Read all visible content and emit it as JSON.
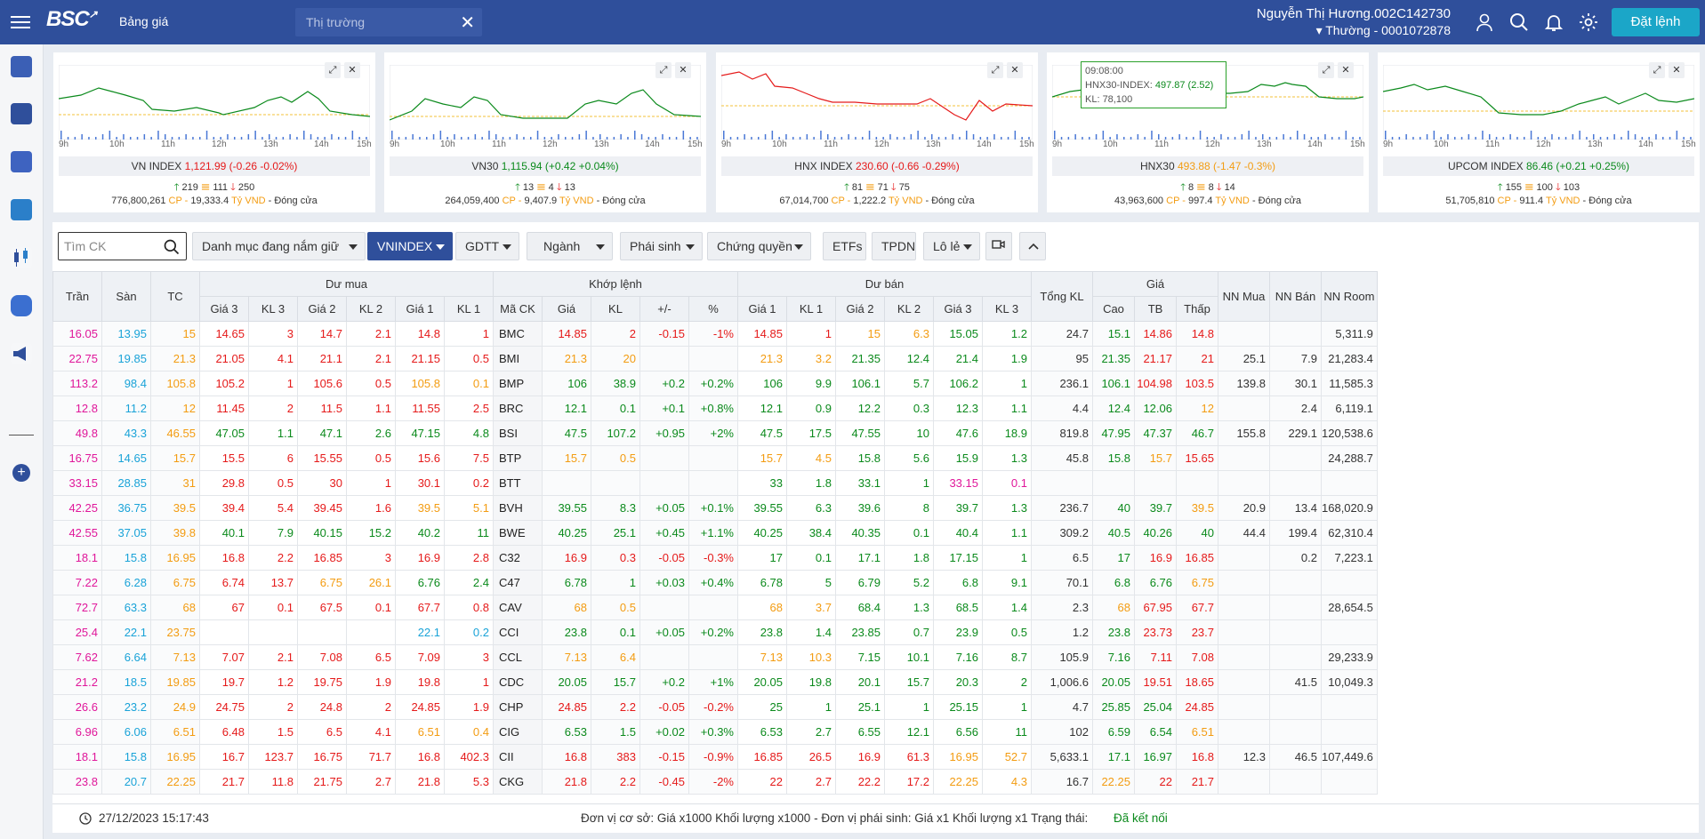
{
  "topbar": {
    "logo": "BSC",
    "price_board_tab": "Bảng giá",
    "market_tab_placeholder": "Thị trường",
    "user_name": "Nguyễn Thị Hương.002C142730",
    "account_line": "Thường - 0001072878",
    "order_button": "Đặt lệnh"
  },
  "chart_times": [
    "9h",
    "10h",
    "11h",
    "12h",
    "13h",
    "14h",
    "15h"
  ],
  "index_cards": [
    {
      "name": "VN INDEX",
      "value": "1,121.99",
      "change": "(-0.26 -0.02%)",
      "color": "#e51a1a",
      "up": "219",
      "flat": "111",
      "down": "250",
      "volume": "776,800,261",
      "vol_unit": "CP - ",
      "turnover": "19,333.4",
      "turnover_unit": "Tỷ VND",
      "status": "- Đóng cửa"
    },
    {
      "name": "VN30",
      "value": "1,115.94",
      "change": "(+0.42 +0.04%)",
      "color": "#0b8a1c",
      "up": "13",
      "flat": "4",
      "down": "13",
      "volume": "264,059,400",
      "vol_unit": "CP - ",
      "turnover": "9,407.9",
      "turnover_unit": "Tỷ VND",
      "status": "- Đóng cửa"
    },
    {
      "name": "HNX INDEX",
      "value": "230.60",
      "change": "(-0.66 -0.29%)",
      "color": "#e51a1a",
      "up": "81",
      "flat": "71",
      "down": "75",
      "volume": "67,014,700",
      "vol_unit": "CP - ",
      "turnover": "1,222.2",
      "turnover_unit": "Tỷ VND",
      "status": "- Đóng cửa"
    },
    {
      "name": "HNX30",
      "value": "493.88",
      "change": "(-1.47 -0.3%)",
      "color": "#f39c12",
      "up": "8",
      "flat": "8",
      "down": "14",
      "volume": "43,963,600",
      "vol_unit": "CP - ",
      "turnover": "997.4",
      "turnover_unit": "Tỷ VND",
      "status": "- Đóng cửa"
    },
    {
      "name": "UPCOM INDEX",
      "value": "86.46",
      "change": "(+0.21 +0.25%)",
      "color": "#0b8a1c",
      "up": "155",
      "flat": "100",
      "down": "103",
      "volume": "51,705,810",
      "vol_unit": "CP - ",
      "turnover": "911.4",
      "turnover_unit": "Tỷ VND",
      "status": "- Đóng cửa"
    }
  ],
  "tooltip": {
    "time": "09:08:00",
    "label": "HNX30-INDEX: ",
    "value": "497.87 (2.52)",
    "kl": "KL: 78,100"
  },
  "filters": {
    "search_placeholder": "Tìm CK",
    "portfolio": "Danh mục đang nắm giữ",
    "vnindex": "VNINDEX",
    "gdtt": "GDTT",
    "nganh": "Ngành",
    "phai_sinh": "Phái sinh",
    "chung_quyen": "Chứng quyền",
    "etfs": "ETFs",
    "tpdn": "TPDN",
    "lo_le": "Lô lẻ"
  },
  "table": {
    "groups": {
      "ceil": "Trần",
      "floor": "Sàn",
      "ref": "TC",
      "bid": "Dư mua",
      "match": "Khớp lệnh",
      "ask": "Dư bán",
      "total": "Tổng KL",
      "price": "Giá",
      "nn_buy": "NN Mua",
      "nn_sell": "NN Bán",
      "nn_room": "NN Room"
    },
    "sub": {
      "bid": [
        "Giá 3",
        "KL 3",
        "Giá 2",
        "KL 2",
        "Giá 1",
        "KL 1"
      ],
      "match": [
        "Mã CK",
        "Giá",
        "KL",
        "+/-",
        "%"
      ],
      "ask": [
        "Giá 1",
        "KL 1",
        "Giá 2",
        "KL 2",
        "Giá 3",
        "KL 3"
      ],
      "price": [
        "Cao",
        "TB",
        "Thấp"
      ]
    },
    "rows": [
      [
        "16.05",
        "13.95",
        "15",
        "14.65",
        "3",
        "14.7",
        "2.1",
        "14.8",
        "1",
        "BMC",
        "14.85",
        "2",
        "-0.15",
        "-1%",
        "14.85",
        "1",
        "15",
        "6.3",
        "15.05",
        "1.2",
        "24.7",
        "15.1",
        "14.86",
        "14.8",
        "",
        "",
        "5,311.9"
      ],
      [
        "22.75",
        "19.85",
        "21.3",
        "21.05",
        "4.1",
        "21.1",
        "2.1",
        "21.15",
        "0.5",
        "BMI",
        "21.3",
        "20",
        "",
        "",
        "21.3",
        "3.2",
        "21.35",
        "12.4",
        "21.4",
        "1.9",
        "95",
        "21.35",
        "21.17",
        "21",
        "25.1",
        "7.9",
        "21,283.4"
      ],
      [
        "113.2",
        "98.4",
        "105.8",
        "105.2",
        "1",
        "105.6",
        "0.5",
        "105.8",
        "0.1",
        "BMP",
        "106",
        "38.9",
        "+0.2",
        "+0.2%",
        "106",
        "9.9",
        "106.1",
        "5.7",
        "106.2",
        "1",
        "236.1",
        "106.1",
        "104.98",
        "103.5",
        "139.8",
        "30.1",
        "11,585.3"
      ],
      [
        "12.8",
        "11.2",
        "12",
        "11.45",
        "2",
        "11.5",
        "1.1",
        "11.55",
        "2.5",
        "BRC",
        "12.1",
        "0.1",
        "+0.1",
        "+0.8%",
        "12.1",
        "0.9",
        "12.2",
        "0.3",
        "12.3",
        "1.1",
        "4.4",
        "12.4",
        "12.06",
        "12",
        "",
        "2.4",
        "6,119.1"
      ],
      [
        "49.8",
        "43.3",
        "46.55",
        "47.05",
        "1.1",
        "47.1",
        "2.6",
        "47.15",
        "4.8",
        "BSI",
        "47.5",
        "107.2",
        "+0.95",
        "+2%",
        "47.5",
        "17.5",
        "47.55",
        "10",
        "47.6",
        "18.9",
        "819.8",
        "47.95",
        "47.37",
        "46.7",
        "155.8",
        "229.1",
        "120,538.6"
      ],
      [
        "16.75",
        "14.65",
        "15.7",
        "15.5",
        "6",
        "15.55",
        "0.5",
        "15.6",
        "7.5",
        "BTP",
        "15.7",
        "0.5",
        "",
        "",
        "15.7",
        "4.5",
        "15.8",
        "5.6",
        "15.9",
        "1.3",
        "45.8",
        "15.8",
        "15.7",
        "15.65",
        "",
        "",
        "24,288.7"
      ],
      [
        "33.15",
        "28.85",
        "31",
        "29.8",
        "0.5",
        "30",
        "1",
        "30.1",
        "0.2",
        "BTT",
        "",
        "",
        "",
        "",
        "33",
        "1.8",
        "33.1",
        "1",
        "33.15",
        "0.1",
        "",
        "",
        "",
        "",
        "",
        "",
        ""
      ],
      [
        "42.25",
        "36.75",
        "39.5",
        "39.4",
        "5.4",
        "39.45",
        "1.6",
        "39.5",
        "5.1",
        "BVH",
        "39.55",
        "8.3",
        "+0.05",
        "+0.1%",
        "39.55",
        "6.3",
        "39.6",
        "8",
        "39.7",
        "1.3",
        "236.7",
        "40",
        "39.7",
        "39.5",
        "20.9",
        "13.4",
        "168,020.9"
      ],
      [
        "42.55",
        "37.05",
        "39.8",
        "40.1",
        "7.9",
        "40.15",
        "15.2",
        "40.2",
        "11",
        "BWE",
        "40.25",
        "25.1",
        "+0.45",
        "+1.1%",
        "40.25",
        "38.4",
        "40.35",
        "0.1",
        "40.4",
        "1.1",
        "309.2",
        "40.5",
        "40.26",
        "40",
        "44.4",
        "199.4",
        "62,310.4"
      ],
      [
        "18.1",
        "15.8",
        "16.95",
        "16.8",
        "2.2",
        "16.85",
        "3",
        "16.9",
        "2.8",
        "C32",
        "16.9",
        "0.3",
        "-0.05",
        "-0.3%",
        "17",
        "0.1",
        "17.1",
        "1.8",
        "17.15",
        "1",
        "6.5",
        "17",
        "16.9",
        "16.85",
        "",
        "0.2",
        "7,223.1"
      ],
      [
        "7.22",
        "6.28",
        "6.75",
        "6.74",
        "13.7",
        "6.75",
        "26.1",
        "6.76",
        "2.4",
        "C47",
        "6.78",
        "1",
        "+0.03",
        "+0.4%",
        "6.78",
        "5",
        "6.79",
        "5.2",
        "6.8",
        "9.1",
        "70.1",
        "6.8",
        "6.76",
        "6.75",
        "",
        "",
        ""
      ],
      [
        "72.7",
        "63.3",
        "68",
        "67",
        "0.1",
        "67.5",
        "0.1",
        "67.7",
        "0.8",
        "CAV",
        "68",
        "0.5",
        "",
        "",
        "68",
        "3.7",
        "68.4",
        "1.3",
        "68.5",
        "1.4",
        "2.3",
        "68",
        "67.95",
        "67.7",
        "",
        "",
        "28,654.5"
      ],
      [
        "25.4",
        "22.1",
        "23.75",
        "",
        "",
        "",
        "",
        "22.1",
        "0.2",
        "CCI",
        "23.8",
        "0.1",
        "+0.05",
        "+0.2%",
        "23.8",
        "1.4",
        "23.85",
        "0.7",
        "23.9",
        "0.5",
        "1.2",
        "23.8",
        "23.73",
        "23.7",
        "",
        "",
        ""
      ],
      [
        "7.62",
        "6.64",
        "7.13",
        "7.07",
        "2.1",
        "7.08",
        "6.5",
        "7.09",
        "3",
        "CCL",
        "7.13",
        "6.4",
        "",
        "",
        "7.13",
        "10.3",
        "7.15",
        "10.1",
        "7.16",
        "8.7",
        "105.9",
        "7.16",
        "7.11",
        "7.08",
        "",
        "",
        "29,233.9"
      ],
      [
        "21.2",
        "18.5",
        "19.85",
        "19.7",
        "1.2",
        "19.75",
        "1.9",
        "19.8",
        "1",
        "CDC",
        "20.05",
        "15.7",
        "+0.2",
        "+1%",
        "20.05",
        "19.8",
        "20.1",
        "15.7",
        "20.3",
        "2",
        "1,006.6",
        "20.05",
        "19.51",
        "18.65",
        "",
        "41.5",
        "10,049.3"
      ],
      [
        "26.6",
        "23.2",
        "24.9",
        "24.75",
        "2",
        "24.8",
        "2",
        "24.85",
        "1.9",
        "CHP",
        "24.85",
        "2.2",
        "-0.05",
        "-0.2%",
        "25",
        "1",
        "25.1",
        "1",
        "25.15",
        "1",
        "4.7",
        "25.85",
        "25.04",
        "24.85",
        "",
        "",
        ""
      ],
      [
        "6.96",
        "6.06",
        "6.51",
        "6.48",
        "1.5",
        "6.5",
        "4.1",
        "6.51",
        "0.4",
        "CIG",
        "6.53",
        "1.5",
        "+0.02",
        "+0.3%",
        "6.53",
        "2.7",
        "6.55",
        "12.1",
        "6.56",
        "11",
        "102",
        "6.59",
        "6.54",
        "6.51",
        "",
        "",
        ""
      ],
      [
        "18.1",
        "15.8",
        "16.95",
        "16.7",
        "123.7",
        "16.75",
        "71.7",
        "16.8",
        "402.3",
        "CII",
        "16.8",
        "383",
        "-0.15",
        "-0.9%",
        "16.85",
        "26.5",
        "16.9",
        "61.3",
        "16.95",
        "52.7",
        "5,633.1",
        "17.1",
        "16.97",
        "16.8",
        "12.3",
        "46.5",
        "107,449.6"
      ],
      [
        "23.8",
        "20.7",
        "22.25",
        "21.7",
        "11.8",
        "21.75",
        "2.7",
        "21.8",
        "5.3",
        "CKG",
        "21.8",
        "2.2",
        "-0.45",
        "-2%",
        "22",
        "2.7",
        "22.2",
        "17.2",
        "22.25",
        "4.3",
        "16.7",
        "22.25",
        "22",
        "21.7",
        "",
        "",
        ""
      ]
    ]
  },
  "footer": {
    "datetime": "27/12/2023 15:17:43",
    "note": "Đơn vị cơ sở: Giá x1000 Khối lượng x1000 - Đơn vị phái sinh: Giá x1 Khối lượng x1 Trạng thái:",
    "status": "Đã kết nối"
  }
}
